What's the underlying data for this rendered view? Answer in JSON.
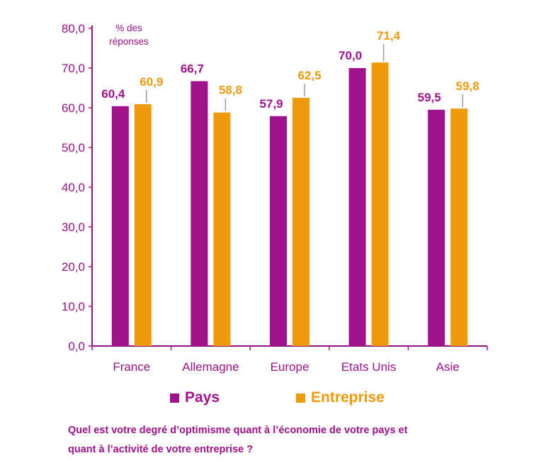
{
  "chart_data": {
    "type": "bar",
    "title": "",
    "unit_label_line1": "% des",
    "unit_label_line2": "réponses",
    "xlabel": "",
    "ylabel": "",
    "ylim": [
      0,
      80
    ],
    "yticks": [
      "0,0",
      "10,0",
      "20,0",
      "30,0",
      "40,0",
      "50,0",
      "60,0",
      "70,0",
      "80,0"
    ],
    "ytick_values": [
      0,
      10,
      20,
      30,
      40,
      50,
      60,
      70,
      80
    ],
    "categories": [
      "France",
      "Allemagne",
      "Europe",
      "Etats Unis",
      "Asie"
    ],
    "series": [
      {
        "name": "Pays",
        "color": "#a0128c",
        "values": [
          60.4,
          66.7,
          57.9,
          70.0,
          59.5
        ],
        "labels": [
          "60,4",
          "66,7",
          "57,9",
          "70,0",
          "59,5"
        ]
      },
      {
        "name": "Entreprise",
        "color": "#ef9a0a",
        "values": [
          60.9,
          58.8,
          62.5,
          71.4,
          59.8
        ],
        "labels": [
          "60,9",
          "58,8",
          "62,5",
          "71,4",
          "59,8"
        ]
      }
    ],
    "legend_position": "bottom"
  },
  "question": {
    "line1": "Quel est votre degré d’optimisme quant à l’économie de votre pays et",
    "line2": "quant à l’activité de votre entreprise ?"
  }
}
